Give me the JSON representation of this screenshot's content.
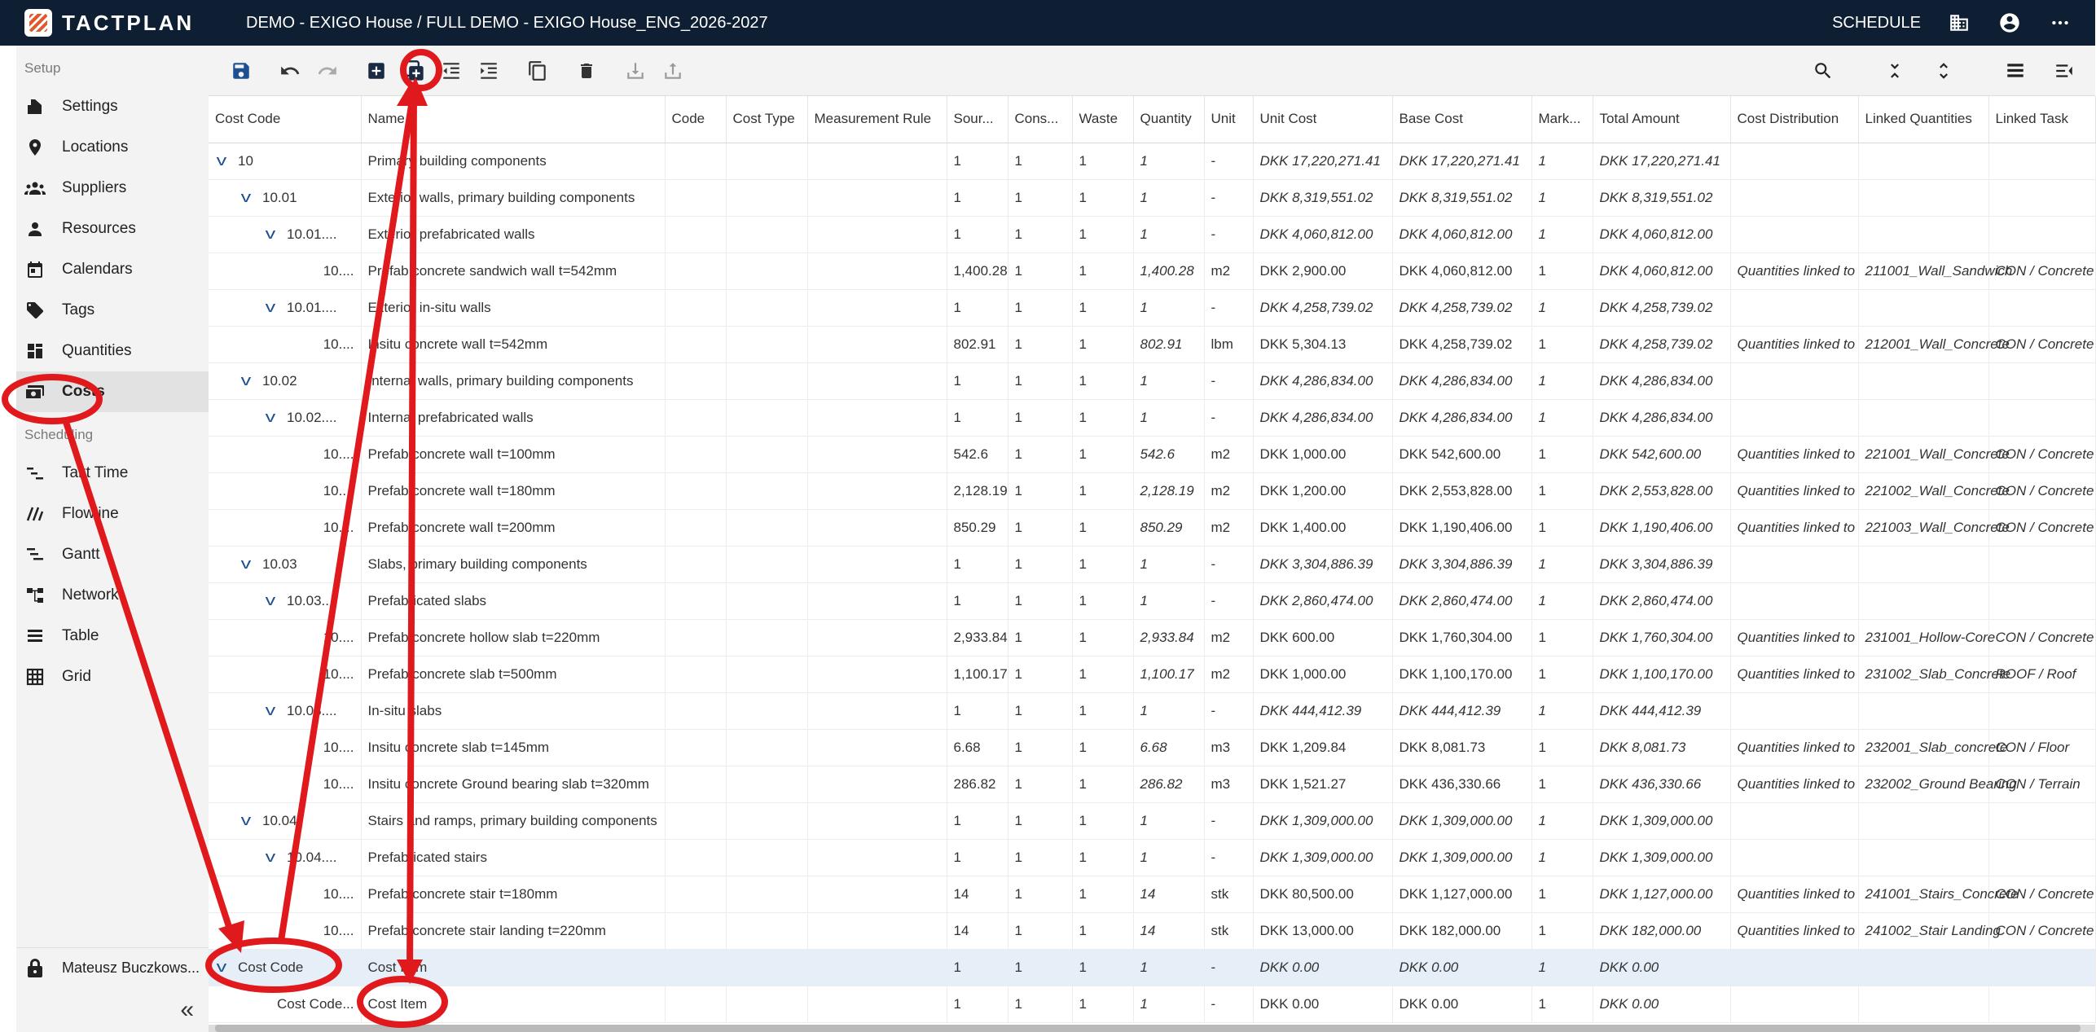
{
  "header": {
    "logo_text": "TACTPLAN",
    "breadcrumb": "DEMO - EXIGO House / FULL DEMO - EXIGO House_ENG_2026-2027",
    "schedule_label": "SCHEDULE"
  },
  "sidebar": {
    "setup_label": "Setup",
    "setup_items": [
      {
        "label": "Settings",
        "icon": "gear-icon"
      },
      {
        "label": "Locations",
        "icon": "pin-icon"
      },
      {
        "label": "Suppliers",
        "icon": "group-icon"
      },
      {
        "label": "Resources",
        "icon": "person-icon"
      },
      {
        "label": "Calendars",
        "icon": "calendar-icon"
      },
      {
        "label": "Tags",
        "icon": "tag-icon"
      },
      {
        "label": "Quantities",
        "icon": "quantities-icon"
      },
      {
        "label": "Costs",
        "icon": "money-icon"
      }
    ],
    "scheduling_label": "Scheduling",
    "scheduling_items": [
      {
        "label": "Takt Time",
        "icon": "takt-icon"
      },
      {
        "label": "Flowline",
        "icon": "flowline-icon"
      },
      {
        "label": "Gantt",
        "icon": "gantt-icon"
      },
      {
        "label": "Network",
        "icon": "network-icon"
      },
      {
        "label": "Table",
        "icon": "table-icon"
      },
      {
        "label": "Grid",
        "icon": "grid-icon"
      }
    ],
    "user_name": "Mateusz Buczkows...",
    "collapse_label": "«"
  },
  "table": {
    "columns": [
      "Cost Code",
      "Name",
      "Code",
      "Cost Type",
      "Measurement Rule",
      "Sour...",
      "Cons...",
      "Waste",
      "Quantity",
      "Unit",
      "Unit Cost",
      "Base Cost",
      "Mark...",
      "Total Amount",
      "Cost Distribution",
      "Linked Quantities",
      "Linked Task"
    ],
    "rows": [
      {
        "level": 0,
        "chevron": true,
        "code": "10",
        "name": "Primary building components",
        "src": "1",
        "cons": "1",
        "waste": "1",
        "qty": "1",
        "unit": "-",
        "unit_cost": "DKK 17,220,271.41",
        "base_cost": "DKK 17,220,271.41",
        "mark": "1",
        "total": "DKK 17,220,271.41",
        "dist": "",
        "linked_q": "",
        "linked_t": "",
        "group": true
      },
      {
        "level": 1,
        "chevron": true,
        "code": "10.01",
        "name": "Exterior walls, primary building components",
        "src": "1",
        "cons": "1",
        "waste": "1",
        "qty": "1",
        "unit": "-",
        "unit_cost": "DKK 8,319,551.02",
        "base_cost": "DKK 8,319,551.02",
        "mark": "1",
        "total": "DKK 8,319,551.02",
        "dist": "",
        "linked_q": "",
        "linked_t": "",
        "group": true
      },
      {
        "level": 2,
        "chevron": true,
        "code": "10.01....",
        "name": "Exterior prefabricated walls",
        "src": "1",
        "cons": "1",
        "waste": "1",
        "qty": "1",
        "unit": "-",
        "unit_cost": "DKK 4,060,812.00",
        "base_cost": "DKK 4,060,812.00",
        "mark": "1",
        "total": "DKK 4,060,812.00",
        "dist": "",
        "linked_q": "",
        "linked_t": "",
        "group": true
      },
      {
        "level": 3,
        "chevron": false,
        "code": "10....",
        "name": "Prefab concrete sandwich wall t=542mm",
        "src": "1,400.28",
        "cons": "1",
        "waste": "1",
        "qty": "1,400.28",
        "unit": "m2",
        "unit_cost": "DKK 2,900.00",
        "base_cost": "DKK 4,060,812.00",
        "mark": "1",
        "total": "DKK 4,060,812.00",
        "dist": "Quantities linked to",
        "linked_q": "211001_Wall_Sandwich",
        "linked_t": "CON / Concrete",
        "group": false
      },
      {
        "level": 2,
        "chevron": true,
        "code": "10.01....",
        "name": "Exterior in-situ walls",
        "src": "1",
        "cons": "1",
        "waste": "1",
        "qty": "1",
        "unit": "-",
        "unit_cost": "DKK 4,258,739.02",
        "base_cost": "DKK 4,258,739.02",
        "mark": "1",
        "total": "DKK 4,258,739.02",
        "dist": "",
        "linked_q": "",
        "linked_t": "",
        "group": true
      },
      {
        "level": 3,
        "chevron": false,
        "code": "10....",
        "name": "Insitu concrete wall t=542mm",
        "src": "802.91",
        "cons": "1",
        "waste": "1",
        "qty": "802.91",
        "unit": "lbm",
        "unit_cost": "DKK 5,304.13",
        "base_cost": "DKK 4,258,739.02",
        "mark": "1",
        "total": "DKK 4,258,739.02",
        "dist": "Quantities linked to",
        "linked_q": "212001_Wall_Concrete",
        "linked_t": "CON / Concrete",
        "group": false
      },
      {
        "level": 1,
        "chevron": true,
        "code": "10.02",
        "name": "Internal walls, primary building components",
        "src": "1",
        "cons": "1",
        "waste": "1",
        "qty": "1",
        "unit": "-",
        "unit_cost": "DKK 4,286,834.00",
        "base_cost": "DKK 4,286,834.00",
        "mark": "1",
        "total": "DKK 4,286,834.00",
        "dist": "",
        "linked_q": "",
        "linked_t": "",
        "group": true
      },
      {
        "level": 2,
        "chevron": true,
        "code": "10.02....",
        "name": "Internal prefabricated walls",
        "src": "1",
        "cons": "1",
        "waste": "1",
        "qty": "1",
        "unit": "-",
        "unit_cost": "DKK 4,286,834.00",
        "base_cost": "DKK 4,286,834.00",
        "mark": "1",
        "total": "DKK 4,286,834.00",
        "dist": "",
        "linked_q": "",
        "linked_t": "",
        "group": true
      },
      {
        "level": 3,
        "chevron": false,
        "code": "10....",
        "name": "Prefab concrete wall t=100mm",
        "src": "542.6",
        "cons": "1",
        "waste": "1",
        "qty": "542.6",
        "unit": "m2",
        "unit_cost": "DKK 1,000.00",
        "base_cost": "DKK 542,600.00",
        "mark": "1",
        "total": "DKK 542,600.00",
        "dist": "Quantities linked to",
        "linked_q": "221001_Wall_Concrete",
        "linked_t": "CON / Concrete",
        "group": false
      },
      {
        "level": 3,
        "chevron": false,
        "code": "10....",
        "name": "Prefab concrete wall t=180mm",
        "src": "2,128.19",
        "cons": "1",
        "waste": "1",
        "qty": "2,128.19",
        "unit": "m2",
        "unit_cost": "DKK 1,200.00",
        "base_cost": "DKK 2,553,828.00",
        "mark": "1",
        "total": "DKK 2,553,828.00",
        "dist": "Quantities linked to",
        "linked_q": "221002_Wall_Concrete",
        "linked_t": "CON / Concrete",
        "group": false
      },
      {
        "level": 3,
        "chevron": false,
        "code": "10....",
        "name": "Prefab concrete wall t=200mm",
        "src": "850.29",
        "cons": "1",
        "waste": "1",
        "qty": "850.29",
        "unit": "m2",
        "unit_cost": "DKK 1,400.00",
        "base_cost": "DKK 1,190,406.00",
        "mark": "1",
        "total": "DKK 1,190,406.00",
        "dist": "Quantities linked to",
        "linked_q": "221003_Wall_Concrete",
        "linked_t": "CON / Concrete",
        "group": false
      },
      {
        "level": 1,
        "chevron": true,
        "code": "10.03",
        "name": "Slabs, primary building components",
        "src": "1",
        "cons": "1",
        "waste": "1",
        "qty": "1",
        "unit": "-",
        "unit_cost": "DKK 3,304,886.39",
        "base_cost": "DKK 3,304,886.39",
        "mark": "1",
        "total": "DKK 3,304,886.39",
        "dist": "",
        "linked_q": "",
        "linked_t": "",
        "group": true
      },
      {
        "level": 2,
        "chevron": true,
        "code": "10.03....",
        "name": "Prefabricated slabs",
        "src": "1",
        "cons": "1",
        "waste": "1",
        "qty": "1",
        "unit": "-",
        "unit_cost": "DKK 2,860,474.00",
        "base_cost": "DKK 2,860,474.00",
        "mark": "1",
        "total": "DKK 2,860,474.00",
        "dist": "",
        "linked_q": "",
        "linked_t": "",
        "group": true
      },
      {
        "level": 3,
        "chevron": false,
        "code": "10....",
        "name": "Prefab concrete hollow slab t=220mm",
        "src": "2,933.84",
        "cons": "1",
        "waste": "1",
        "qty": "2,933.84",
        "unit": "m2",
        "unit_cost": "DKK 600.00",
        "base_cost": "DKK 1,760,304.00",
        "mark": "1",
        "total": "DKK 1,760,304.00",
        "dist": "Quantities linked to",
        "linked_q": "231001_Hollow-Core",
        "linked_t": "CON / Concrete",
        "group": false
      },
      {
        "level": 3,
        "chevron": false,
        "code": "10....",
        "name": "Prefab concrete slab t=500mm",
        "src": "1,100.17",
        "cons": "1",
        "waste": "1",
        "qty": "1,100.17",
        "unit": "m2",
        "unit_cost": "DKK 1,000.00",
        "base_cost": "DKK 1,100,170.00",
        "mark": "1",
        "total": "DKK 1,100,170.00",
        "dist": "Quantities linked to",
        "linked_q": "231002_Slab_Concrete",
        "linked_t": "ROOF / Roof",
        "group": false
      },
      {
        "level": 2,
        "chevron": true,
        "code": "10.03....",
        "name": "In-situ slabs",
        "src": "1",
        "cons": "1",
        "waste": "1",
        "qty": "1",
        "unit": "-",
        "unit_cost": "DKK 444,412.39",
        "base_cost": "DKK 444,412.39",
        "mark": "1",
        "total": "DKK 444,412.39",
        "dist": "",
        "linked_q": "",
        "linked_t": "",
        "group": true
      },
      {
        "level": 3,
        "chevron": false,
        "code": "10....",
        "name": "Insitu concrete slab t=145mm",
        "src": "6.68",
        "cons": "1",
        "waste": "1",
        "qty": "6.68",
        "unit": "m3",
        "unit_cost": "DKK 1,209.84",
        "base_cost": "DKK 8,081.73",
        "mark": "1",
        "total": "DKK 8,081.73",
        "dist": "Quantities linked to",
        "linked_q": "232001_Slab_concrete",
        "linked_t": "CON / Floor",
        "group": false
      },
      {
        "level": 3,
        "chevron": false,
        "code": "10....",
        "name": "Insitu concrete Ground bearing slab t=320mm",
        "src": "286.82",
        "cons": "1",
        "waste": "1",
        "qty": "286.82",
        "unit": "m3",
        "unit_cost": "DKK 1,521.27",
        "base_cost": "DKK 436,330.66",
        "mark": "1",
        "total": "DKK 436,330.66",
        "dist": "Quantities linked to",
        "linked_q": "232002_Ground Bearing",
        "linked_t": "CON / Terrain",
        "group": false
      },
      {
        "level": 1,
        "chevron": true,
        "code": "10.04",
        "name": "Stairs and ramps, primary building components",
        "src": "1",
        "cons": "1",
        "waste": "1",
        "qty": "1",
        "unit": "-",
        "unit_cost": "DKK 1,309,000.00",
        "base_cost": "DKK 1,309,000.00",
        "mark": "1",
        "total": "DKK 1,309,000.00",
        "dist": "",
        "linked_q": "",
        "linked_t": "",
        "group": true
      },
      {
        "level": 2,
        "chevron": true,
        "code": "10.04....",
        "name": "Prefabricated stairs",
        "src": "1",
        "cons": "1",
        "waste": "1",
        "qty": "1",
        "unit": "-",
        "unit_cost": "DKK 1,309,000.00",
        "base_cost": "DKK 1,309,000.00",
        "mark": "1",
        "total": "DKK 1,309,000.00",
        "dist": "",
        "linked_q": "",
        "linked_t": "",
        "group": true
      },
      {
        "level": 3,
        "chevron": false,
        "code": "10....",
        "name": "Prefab concrete stair t=180mm",
        "src": "14",
        "cons": "1",
        "waste": "1",
        "qty": "14",
        "unit": "stk",
        "unit_cost": "DKK 80,500.00",
        "base_cost": "DKK 1,127,000.00",
        "mark": "1",
        "total": "DKK 1,127,000.00",
        "dist": "Quantities linked to",
        "linked_q": "241001_Stairs_Concrete",
        "linked_t": "CON / Concrete",
        "group": false
      },
      {
        "level": 3,
        "chevron": false,
        "code": "10....",
        "name": "Prefab concrete stair landing t=220mm",
        "src": "14",
        "cons": "1",
        "waste": "1",
        "qty": "14",
        "unit": "stk",
        "unit_cost": "DKK 13,000.00",
        "base_cost": "DKK 182,000.00",
        "mark": "1",
        "total": "DKK 182,000.00",
        "dist": "Quantities linked to",
        "linked_q": "241002_Stair Landing",
        "linked_t": "CON / Concrete",
        "group": false
      },
      {
        "level": 0,
        "chevron": true,
        "code": "Cost Code",
        "name": "Cost Item",
        "src": "1",
        "cons": "1",
        "waste": "1",
        "qty": "1",
        "unit": "-",
        "unit_cost": "DKK 0.00",
        "base_cost": "DKK 0.00",
        "mark": "1",
        "total": "DKK 0.00",
        "dist": "",
        "linked_q": "",
        "linked_t": "",
        "group": true,
        "selected": true
      },
      {
        "level": 1,
        "chevron": false,
        "code": "Cost Code...",
        "name": "Cost Item",
        "src": "1",
        "cons": "1",
        "waste": "1",
        "qty": "1",
        "unit": "-",
        "unit_cost": "DKK 0.00",
        "base_cost": "DKK 0.00",
        "mark": "1",
        "total": "DKK 0.00",
        "dist": "",
        "linked_q": "",
        "linked_t": "",
        "group": false
      }
    ]
  },
  "colors": {
    "topbar": "#0f1f33",
    "accent_blue": "#1d4f91",
    "annotation_red": "#e0191d",
    "selected_row": "#e6eef8"
  }
}
